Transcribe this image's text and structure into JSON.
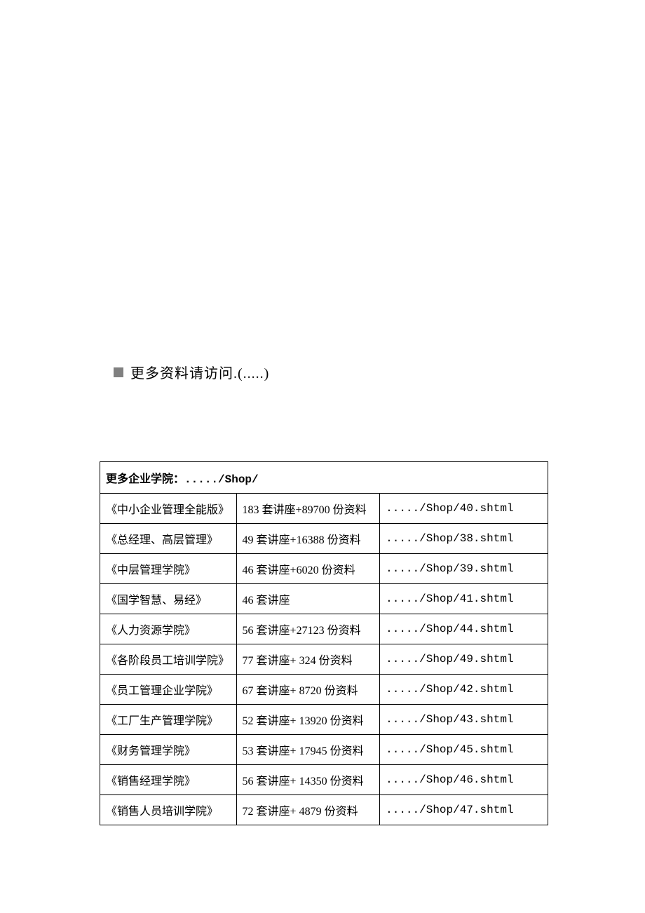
{
  "header": {
    "text": "更多资料请访问.(.....)"
  },
  "table": {
    "headerRow": {
      "label": "更多企业学院：",
      "path": "...../Shop/"
    },
    "rows": [
      {
        "name": "《中小企业管理全能版》",
        "desc": "183 套讲座+89700 份资料",
        "link": "...../Shop/40.shtml"
      },
      {
        "name": "《总经理、高层管理》",
        "desc": "49 套讲座+16388 份资料",
        "link": "...../Shop/38.shtml"
      },
      {
        "name": "《中层管理学院》",
        "desc": "46 套讲座+6020 份资料",
        "link": "...../Shop/39.shtml"
      },
      {
        "name": "《国学智慧、易经》",
        "desc": "46 套讲座",
        "link": "...../Shop/41.shtml"
      },
      {
        "name": "《人力资源学院》",
        "desc": "56 套讲座+27123 份资料",
        "link": "...../Shop/44.shtml"
      },
      {
        "name": "《各阶段员工培训学院》",
        "desc": "77 套讲座+ 324 份资料",
        "link": "...../Shop/49.shtml"
      },
      {
        "name": "《员工管理企业学院》",
        "desc": "67 套讲座+ 8720 份资料",
        "link": "...../Shop/42.shtml"
      },
      {
        "name": "《工厂生产管理学院》",
        "desc": "52 套讲座+ 13920 份资料",
        "link": "...../Shop/43.shtml"
      },
      {
        "name": "《财务管理学院》",
        "desc": "53 套讲座+ 17945 份资料",
        "link": "...../Shop/45.shtml"
      },
      {
        "name": "《销售经理学院》",
        "desc": "56 套讲座+ 14350 份资料",
        "link": "...../Shop/46.shtml"
      },
      {
        "name": "《销售人员培训学院》",
        "desc": "72 套讲座+ 4879 份资料",
        "link": "...../Shop/47.shtml"
      }
    ]
  }
}
